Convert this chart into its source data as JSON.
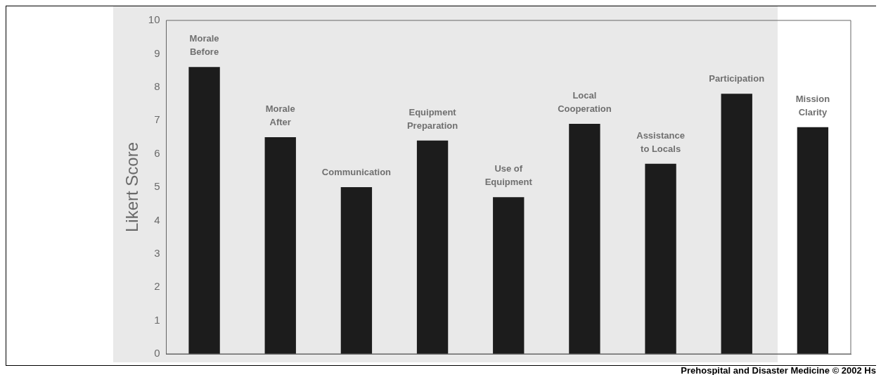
{
  "chart_data": {
    "type": "bar",
    "ylabel": "Likert Score",
    "categories": [
      "Morale\nBefore",
      "Morale\nAfter",
      "Communication",
      "Equipment\nPreparation",
      "Use of\nEquipment",
      "Local\nCooperation",
      "Assistance\nto Locals",
      "Participation",
      "Mission\nClarity"
    ],
    "values": [
      8.6,
      6.5,
      5.0,
      6.4,
      4.7,
      6.9,
      5.7,
      7.8,
      6.8
    ],
    "color": "#1c1c1c",
    "ylim": [
      0,
      10
    ],
    "yticks": [
      0,
      1,
      2,
      3,
      4,
      5,
      6,
      7,
      8,
      9,
      10
    ],
    "grid": false,
    "legend": false,
    "tick_labels": "y",
    "annotations": [
      "Prehospital and Disaster Medicine © 2002 Hs"
    ]
  }
}
